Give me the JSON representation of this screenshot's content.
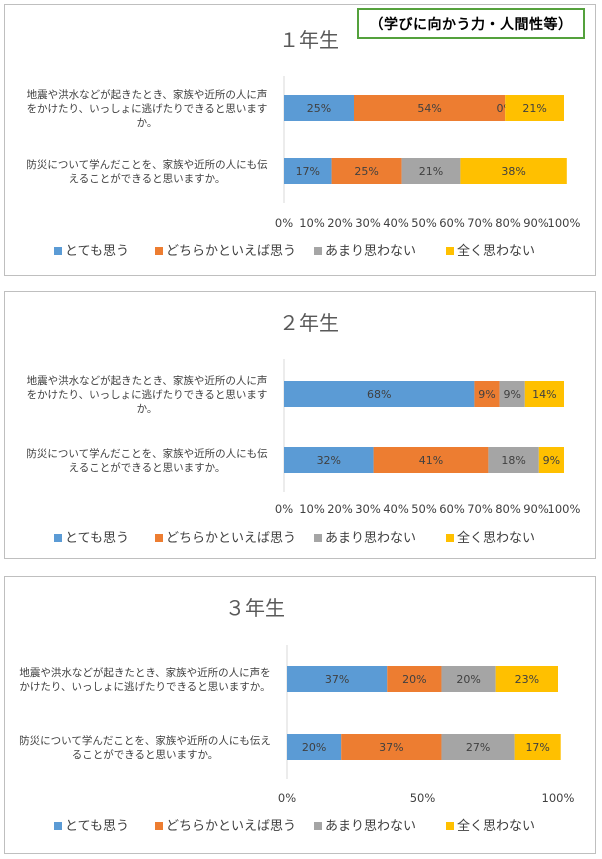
{
  "tag_label": "（学びに向かう力・人間性等）",
  "legend": [
    "とても思う",
    "どちらかといえば思う",
    "あまり思わない",
    "全く思わない"
  ],
  "colors": [
    "#5b9bd5",
    "#ed7d31",
    "#a5a5a5",
    "#ffc000"
  ],
  "chart_data": [
    {
      "type": "bar",
      "orientation": "horizontal-stacked-100",
      "title": "１年生",
      "categories": [
        [
          "地震や洪水などが起きたとき、家族や近所の人に声",
          "をかけたり、いっしょに逃げたりできると思います",
          "か。"
        ],
        [
          "防災について学んだことを、家族や近所の人にも伝",
          "えることができると思いますか。"
        ]
      ],
      "series": [
        {
          "name": "とても思う",
          "values": [
            25,
            17
          ]
        },
        {
          "name": "どちらかといえば思う",
          "values": [
            54,
            25
          ]
        },
        {
          "name": "あまり思わない",
          "values": [
            0,
            21
          ]
        },
        {
          "name": "全く思わない",
          "values": [
            21,
            38
          ]
        }
      ],
      "xticks": [
        "0%",
        "10%",
        "20%",
        "30%",
        "40%",
        "50%",
        "60%",
        "70%",
        "80%",
        "90%",
        "100%"
      ],
      "xlim": [
        0,
        100
      ],
      "legend_position": "bottom"
    },
    {
      "type": "bar",
      "orientation": "horizontal-stacked-100",
      "title": "２年生",
      "categories": [
        [
          "地震や洪水などが起きたとき、家族や近所の人に声",
          "をかけたり、いっしょに逃げたりできると思います",
          "か。"
        ],
        [
          "防災について学んだことを、家族や近所の人にも伝",
          "えることができると思いますか。"
        ]
      ],
      "series": [
        {
          "name": "とても思う",
          "values": [
            68,
            32
          ]
        },
        {
          "name": "どちらかといえば思う",
          "values": [
            9,
            41
          ]
        },
        {
          "name": "あまり思わない",
          "values": [
            9,
            18
          ]
        },
        {
          "name": "全く思わない",
          "values": [
            14,
            9
          ]
        }
      ],
      "xticks": [
        "0%",
        "10%",
        "20%",
        "30%",
        "40%",
        "50%",
        "60%",
        "70%",
        "80%",
        "90%",
        "100%"
      ],
      "xlim": [
        0,
        100
      ],
      "legend_position": "bottom"
    },
    {
      "type": "bar",
      "orientation": "horizontal-stacked-100",
      "title": "３年生",
      "categories": [
        [
          "地震や洪水などが起きたとき、家族や近所の人に声を",
          "かけたり、いっしょに逃げたりできると思いますか。"
        ],
        [
          "防災について学んだことを、家族や近所の人にも伝え",
          "ることができると思いますか。"
        ]
      ],
      "series": [
        {
          "name": "とても思う",
          "values": [
            37,
            20
          ]
        },
        {
          "name": "どちらかといえば思う",
          "values": [
            20,
            37
          ]
        },
        {
          "name": "あまり思わない",
          "values": [
            20,
            27
          ]
        },
        {
          "name": "全く思わない",
          "values": [
            23,
            17
          ]
        }
      ],
      "xticks": [
        "0%",
        "50%",
        "100%"
      ],
      "xlim": [
        0,
        100
      ],
      "legend_position": "bottom"
    }
  ]
}
